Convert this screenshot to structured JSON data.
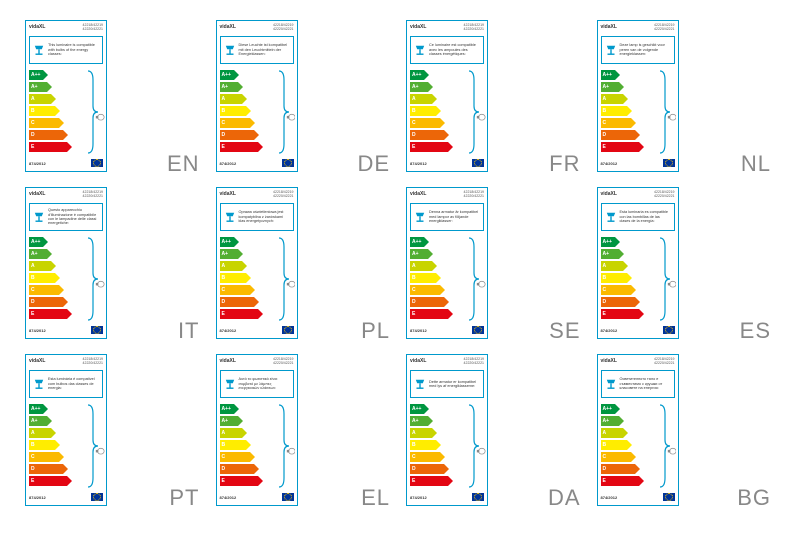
{
  "brand": "vidaXL",
  "product_codes": [
    "42218/42219",
    "42220/42221"
  ],
  "regulation": "874/2012",
  "energy_classes": [
    {
      "label": "A++",
      "color": "#009640",
      "width": 14
    },
    {
      "label": "A+",
      "color": "#52ae32",
      "width": 18
    },
    {
      "label": "A",
      "color": "#c8d400",
      "width": 22
    },
    {
      "label": "B",
      "color": "#ffed00",
      "width": 26
    },
    {
      "label": "C",
      "color": "#fbba00",
      "width": 30
    },
    {
      "label": "D",
      "color": "#ec6608",
      "width": 34
    },
    {
      "label": "E",
      "color": "#e30613",
      "width": 38
    }
  ],
  "bracket_color": "#0099cc",
  "border_color": "#0099cc",
  "labels": [
    {
      "lang": "EN",
      "text": "This luminaire is compatible with bulbs of the energy classes:"
    },
    {
      "lang": "DE",
      "text": "Diese Leuchte ist kompatibel mit den Leuchtmitteln der Energieklassen:"
    },
    {
      "lang": "FR",
      "text": "Ce luminaire est compatible avec les ampoules des classes énergétiques:"
    },
    {
      "lang": "NL",
      "text": "Deze lamp is geschikt voor peren van de volgende energieklassen:"
    },
    {
      "lang": "IT",
      "text": "Questo apparecchio d'illuminazione è compatibile con le lampadine delle classi energetiche:"
    },
    {
      "lang": "PL",
      "text": "Oprawa oświetleniowa jest kompatybilna z żarówkami klas energetycznych:"
    },
    {
      "lang": "SE",
      "text": "Denna armatur är kompatibel med lampor av följande energiklasser:"
    },
    {
      "lang": "ES",
      "text": "Esta luminaria es compatible con las bombillas de las clases de la energía:"
    },
    {
      "lang": "PT",
      "text": "Esta luminária é compatível com bulbos das classes de energia:"
    },
    {
      "lang": "EL",
      "text": "Αυτό το φωτιστικό είναι συμβατό με λάμπες ενεργειακών κλάσεων:"
    },
    {
      "lang": "DA",
      "text": "Dette armatur er kompatibel med lys af energiklasserne:"
    },
    {
      "lang": "BG",
      "text": "Осветителното тяло е съвместимо с крушки от класовете на енергия:"
    }
  ]
}
